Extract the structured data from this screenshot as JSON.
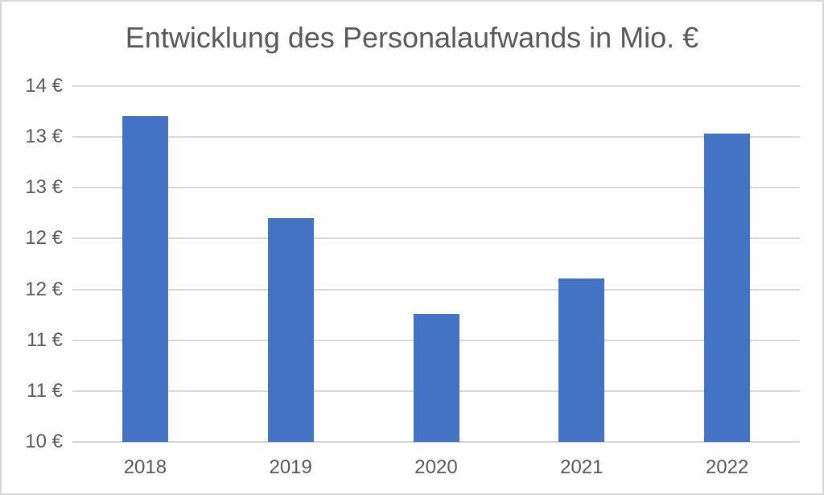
{
  "chart_data": {
    "type": "bar",
    "title": "Entwicklung des Personalaufwands in Mio. €",
    "categories": [
      "2018",
      "2019",
      "2020",
      "2021",
      "2022"
    ],
    "values": [
      13.21,
      12.2,
      11.26,
      11.61,
      13.03
    ],
    "xlabel": "",
    "ylabel": "",
    "ylim": [
      10,
      13.5
    ],
    "y_tick_step": 0.5,
    "y_tick_values_top_to_bottom": [
      13.5,
      13.0,
      12.5,
      12.0,
      11.5,
      11.0,
      10.5,
      10.0
    ],
    "y_tick_labels_top_to_bottom": [
      "14 €",
      "13 €",
      "13 €",
      "12 €",
      "12 €",
      "11 €",
      "11 €",
      "10 €"
    ],
    "grid": "horizontal-on",
    "legend": "none",
    "colors": {
      "bar": "#4472C4",
      "gridline": "#D9D9D9",
      "axis_line": "#D4D4D4",
      "text": "#595959",
      "chart_border": "#D8D8DA",
      "background": "#FFFFFF"
    }
  }
}
